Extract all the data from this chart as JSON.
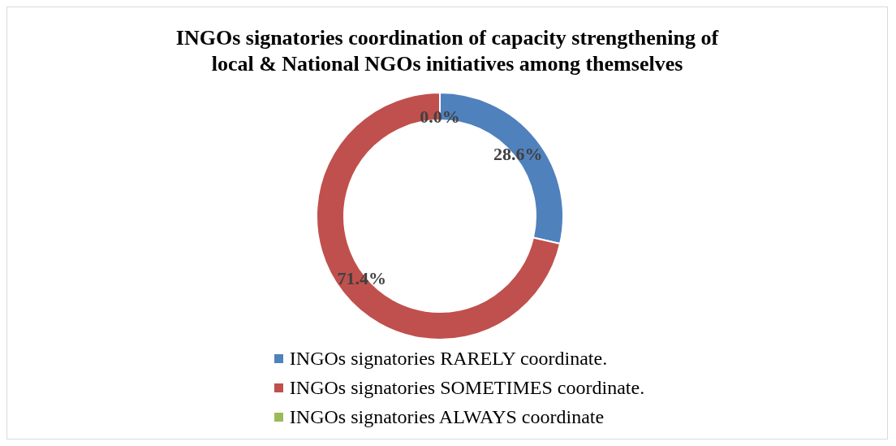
{
  "chart_data": {
    "type": "donut",
    "title": "INGOs signatories coordination of capacity strengthening of local & National NGOs initiatives among themselves",
    "categories": [
      "INGOs signatories RARELY coordinate.",
      "INGOs signatories SOMETIMES coordinate.",
      "INGOs signatories ALWAYS coordinate"
    ],
    "values": [
      28.6,
      71.4,
      0.0
    ],
    "colors": [
      "#4f81bd",
      "#c0504d",
      "#9bbb59"
    ],
    "value_labels": [
      "28.6%",
      "71.4%",
      "0.0%"
    ],
    "legend": "bottom"
  }
}
